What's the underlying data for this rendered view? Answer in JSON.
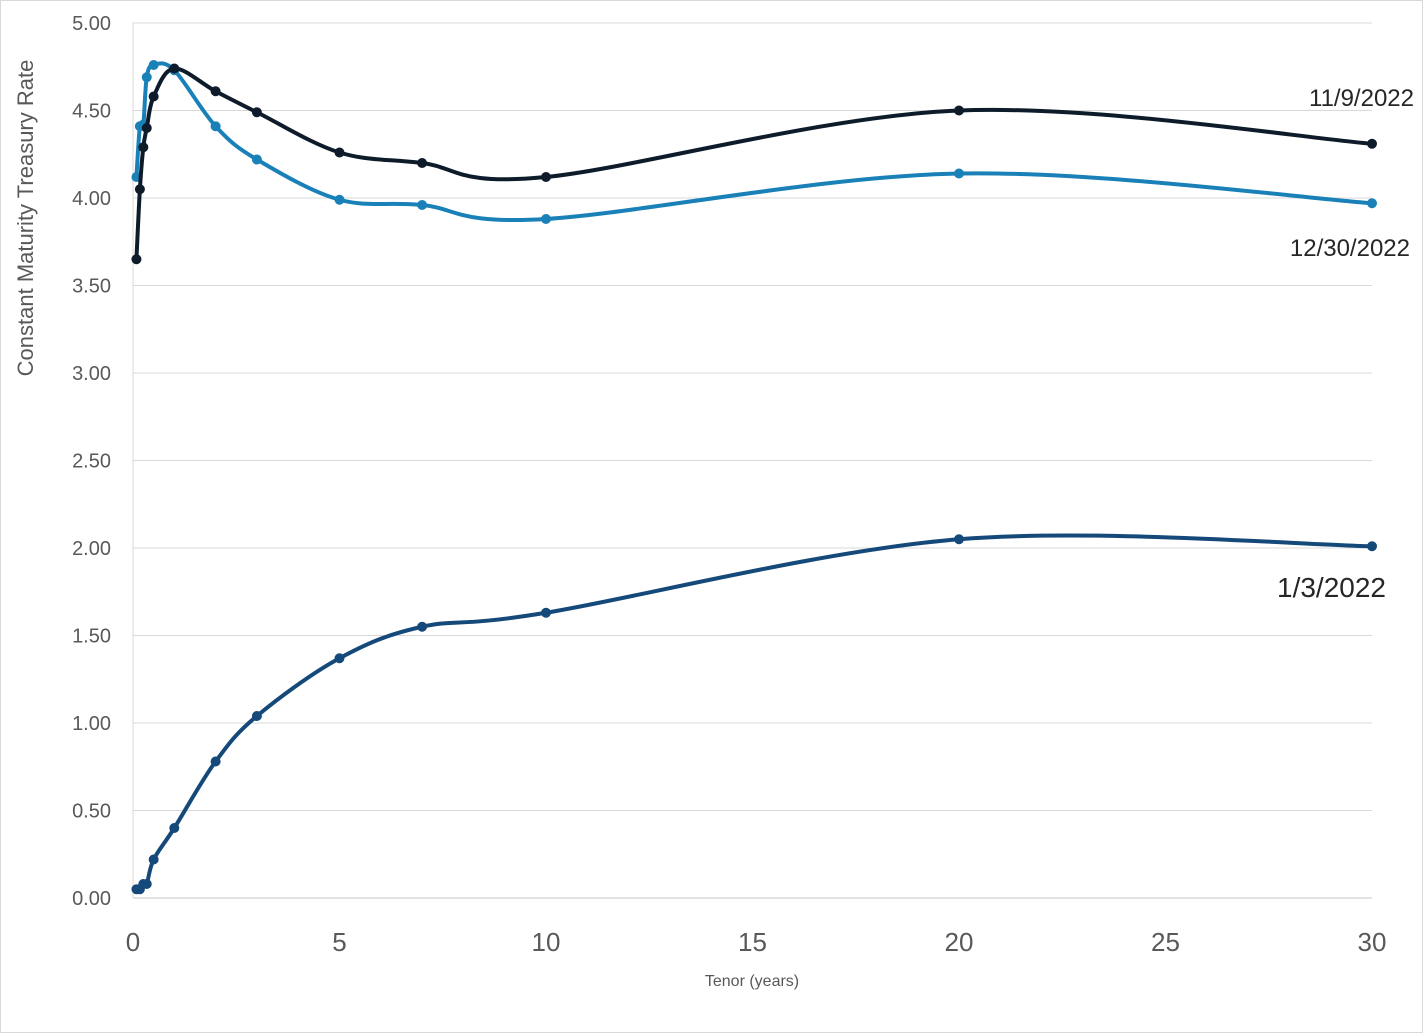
{
  "chart_data": {
    "type": "line",
    "title": "",
    "xlabel": "Tenor (years)",
    "ylabel": "Constant Maturity Treasury Rate",
    "xlim": [
      0,
      30
    ],
    "ylim": [
      0,
      5
    ],
    "x_ticks": [
      "0",
      "5",
      "10",
      "15",
      "20",
      "25",
      "30"
    ],
    "y_ticks": [
      "0.00",
      "0.50",
      "1.00",
      "1.50",
      "2.00",
      "2.50",
      "3.00",
      "3.50",
      "4.00",
      "4.50",
      "5.00"
    ],
    "grid": "horizontal",
    "x": [
      0.083,
      0.167,
      0.25,
      0.333,
      0.5,
      1,
      2,
      3,
      5,
      7,
      10,
      20,
      30
    ],
    "series": [
      {
        "name": "11/9/2022",
        "color": "#0d1b2a",
        "values": [
          3.65,
          4.05,
          4.29,
          4.4,
          4.58,
          4.74,
          4.61,
          4.49,
          4.26,
          4.2,
          4.12,
          4.5,
          4.31
        ]
      },
      {
        "name": "12/30/2022",
        "color": "#1a81b8",
        "values": [
          4.12,
          4.41,
          4.42,
          4.69,
          4.76,
          4.73,
          4.41,
          4.22,
          3.99,
          3.96,
          3.88,
          4.14,
          3.97
        ]
      },
      {
        "name": "1/3/2022",
        "color": "#14497a",
        "values": [
          0.05,
          0.05,
          0.08,
          0.08,
          0.22,
          0.4,
          0.78,
          1.04,
          1.37,
          1.55,
          1.63,
          2.05,
          2.01
        ]
      }
    ]
  }
}
